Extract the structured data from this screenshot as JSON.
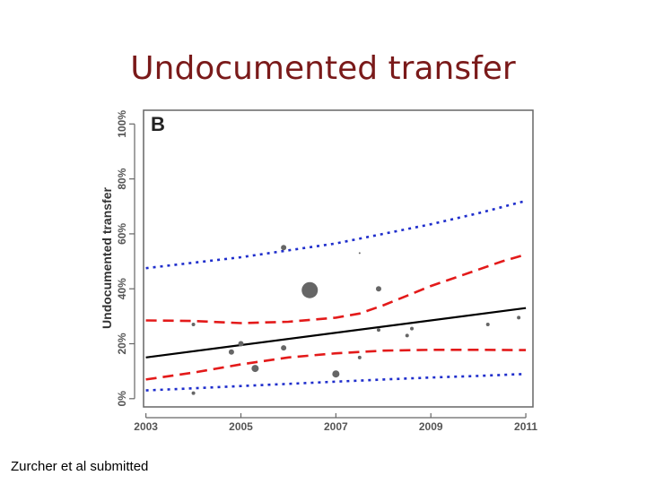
{
  "slide": {
    "title": "Undocumented transfer",
    "footer": "Zurcher et al submitted"
  },
  "chart_data": {
    "type": "scatter",
    "panel_label": "B",
    "ylabel": "Undocumented transfer",
    "xlabel": "",
    "xlim": [
      2002.95,
      2011.15
    ],
    "ylim": [
      -3,
      105
    ],
    "x_ticks": [
      2003,
      2005,
      2007,
      2009,
      2011
    ],
    "y_ticks": [
      {
        "value": 0,
        "label": "0%"
      },
      {
        "value": 20,
        "label": "20%"
      },
      {
        "value": 40,
        "label": "40%"
      },
      {
        "value": 60,
        "label": "60%"
      },
      {
        "value": 80,
        "label": "80%"
      },
      {
        "value": 100,
        "label": "100%"
      }
    ],
    "points": [
      {
        "x": 2004.0,
        "y": 27,
        "size": 2
      },
      {
        "x": 2004.0,
        "y": 2,
        "size": 2
      },
      {
        "x": 2004.8,
        "y": 17,
        "size": 3
      },
      {
        "x": 2005.0,
        "y": 20,
        "size": 3
      },
      {
        "x": 2005.3,
        "y": 11,
        "size": 4
      },
      {
        "x": 2005.9,
        "y": 55,
        "size": 3
      },
      {
        "x": 2005.9,
        "y": 18.5,
        "size": 3
      },
      {
        "x": 2006.45,
        "y": 39.5,
        "size": 9
      },
      {
        "x": 2007.0,
        "y": 9,
        "size": 4
      },
      {
        "x": 2007.5,
        "y": 15,
        "size": 2
      },
      {
        "x": 2007.5,
        "y": 53,
        "size": 1
      },
      {
        "x": 2007.9,
        "y": 40,
        "size": 3
      },
      {
        "x": 2007.9,
        "y": 25,
        "size": 2
      },
      {
        "x": 2008.5,
        "y": 23,
        "size": 2
      },
      {
        "x": 2008.6,
        "y": 25.5,
        "size": 2
      },
      {
        "x": 2010.2,
        "y": 27,
        "size": 2
      },
      {
        "x": 2010.85,
        "y": 29.5,
        "size": 2
      }
    ],
    "series": [
      {
        "style": "fit",
        "color": "#000000",
        "x": [
          2003,
          2011
        ],
        "values": [
          15,
          33
        ]
      },
      {
        "style": "ci",
        "color": "#e31a1a",
        "x": [
          2003,
          2004,
          2005,
          2006,
          2007,
          2007.5,
          2008,
          2008.5,
          2009,
          2009.5,
          2010,
          2010.5,
          2011
        ],
        "values": [
          28.5,
          28.3,
          27.5,
          28,
          29.5,
          31,
          34,
          37.5,
          41,
          44,
          47,
          50,
          52.5
        ]
      },
      {
        "style": "ci",
        "color": "#e31a1a",
        "x": [
          2003,
          2004,
          2005,
          2006,
          2007,
          2008,
          2009,
          2010,
          2011
        ],
        "values": [
          7,
          9.5,
          12.5,
          15,
          16.5,
          17.5,
          17.8,
          17.8,
          17.7
        ]
      },
      {
        "style": "pi",
        "color": "#1f2ecc",
        "x": [
          2003,
          2004,
          2005,
          2006,
          2007,
          2008,
          2009,
          2010,
          2011
        ],
        "values": [
          47.5,
          49.5,
          51.5,
          54,
          56.5,
          60,
          63.5,
          67.5,
          72
        ]
      },
      {
        "style": "pi",
        "color": "#1f2ecc",
        "x": [
          2003,
          2004,
          2005,
          2006,
          2007,
          2008,
          2009,
          2010,
          2011
        ],
        "values": [
          3,
          3.8,
          4.6,
          5.4,
          6.2,
          7,
          7.7,
          8.3,
          9
        ]
      }
    ]
  }
}
